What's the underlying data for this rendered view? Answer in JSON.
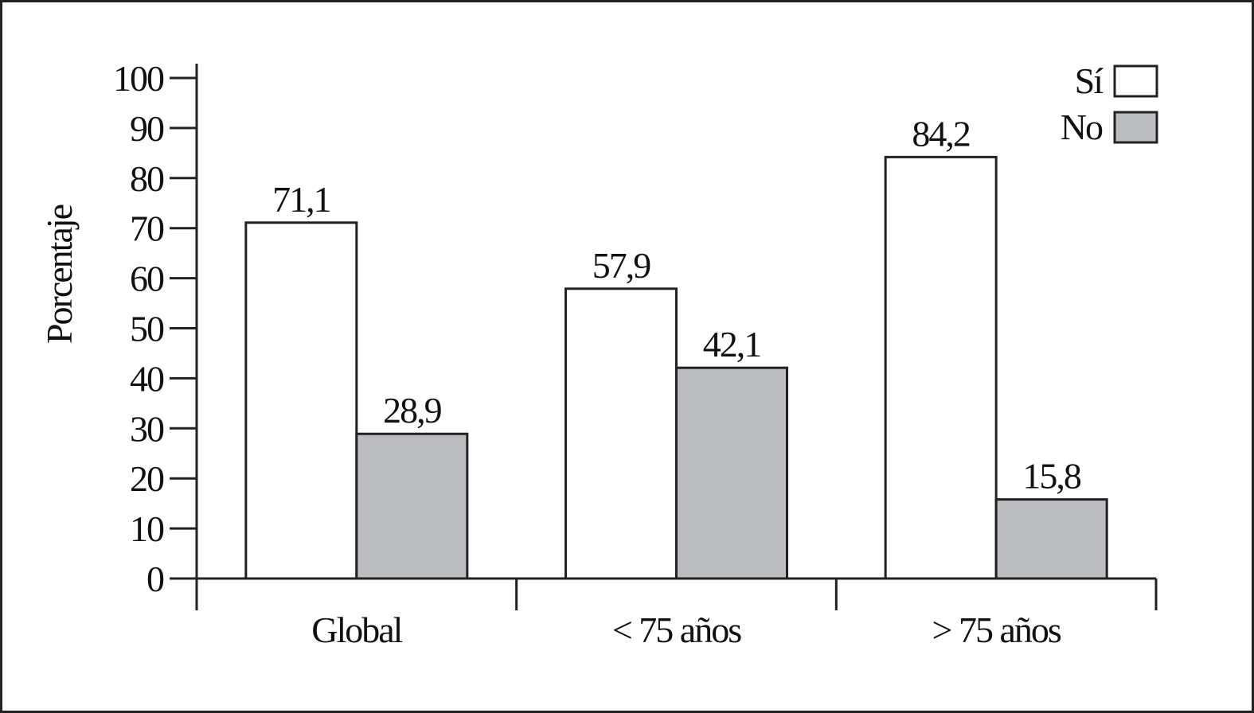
{
  "chart_data": {
    "type": "bar",
    "y_label": "Porcentaje",
    "categories": [
      "Global",
      "< 75 años",
      "> 75 años"
    ],
    "series": [
      {
        "name": "Sí",
        "color": "#ffffff",
        "values": [
          71.1,
          57.9,
          84.2
        ],
        "value_labels": [
          "71,1",
          "57,9",
          "84,2"
        ]
      },
      {
        "name": "No",
        "color": "#bcbdc0",
        "values": [
          28.9,
          42.1,
          15.8
        ],
        "value_labels": [
          "28,9",
          "42,1",
          "15,8"
        ]
      }
    ],
    "ylim": [
      0,
      100
    ],
    "yticks": [
      0,
      10,
      20,
      30,
      40,
      50,
      60,
      70,
      80,
      90,
      100
    ],
    "legend": "top-right",
    "grid": false
  }
}
